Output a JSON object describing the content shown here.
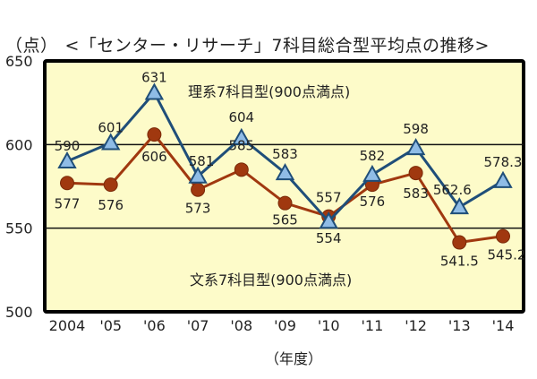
{
  "chart_data": {
    "type": "line",
    "title": "<「センター・リサーチ」7科目総合型平均点の推移>",
    "ylabel": "（点）",
    "xlabel": "（年度）",
    "ylim": [
      500,
      650
    ],
    "yticks": [
      500,
      550,
      600,
      650
    ],
    "grid": "horizontal at 550 and 600",
    "categories": [
      "2004",
      "'05",
      "'06",
      "'07",
      "'08",
      "'09",
      "'10",
      "'11",
      "'12",
      "'13",
      "'14"
    ],
    "series": [
      {
        "name": "理系7科目型(900点満点)",
        "marker": "triangle",
        "color": "#1f4e79",
        "fill": "#8fbce6",
        "values": [
          590,
          601,
          631,
          581,
          604,
          583,
          554,
          582,
          598,
          562.6,
          578.3
        ],
        "labels": [
          "590",
          "601",
          "631",
          "581",
          "604",
          "583",
          "554",
          "582",
          "598",
          "562.6",
          "578.3"
        ]
      },
      {
        "name": "文系7科目型(900点満点)",
        "marker": "circle",
        "color": "#a0380f",
        "fill": "#a0380f",
        "values": [
          577,
          576,
          606,
          573,
          585,
          565,
          557,
          576,
          583,
          541.5,
          545.2
        ],
        "labels": [
          "577",
          "576",
          "606",
          "573",
          "585",
          "565",
          "557",
          "576",
          "583",
          "541.5",
          "545.2"
        ]
      }
    ],
    "legend": "inline series labels inside plot",
    "background": "#fdfbc9"
  },
  "title": {
    "unit": "（点）",
    "text": "<「センター・リサーチ」7科目総合型平均点の推移>"
  },
  "axis": {
    "xlabel": "（年度）",
    "yticks": [
      "650",
      "600",
      "550",
      "500"
    ],
    "xticks": [
      "2004",
      "'05",
      "'06",
      "'07",
      "'08",
      "'09",
      "'10",
      "'11",
      "'12",
      "'13",
      "'14"
    ]
  },
  "series_labels": {
    "science": "理系7科目型(900点満点)",
    "humanities": "文系7科目型(900点満点)"
  }
}
